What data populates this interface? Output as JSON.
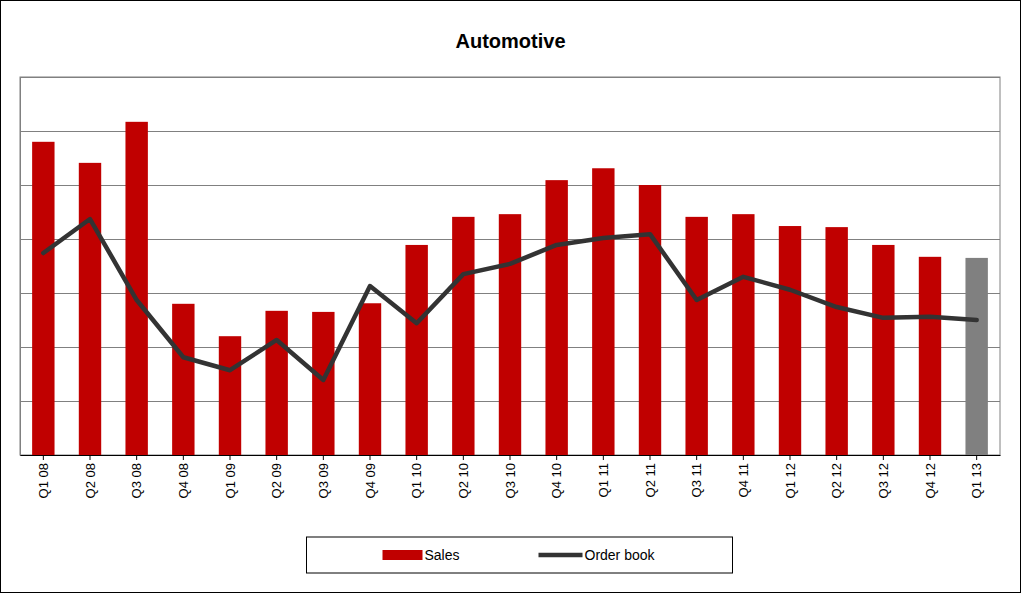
{
  "chart_data": {
    "type": "bar",
    "title": "Automotive",
    "categories": [
      "Q1 08",
      "Q2 08",
      "Q3 08",
      "Q4 08",
      "Q1 09",
      "Q2 09",
      "Q3 09",
      "Q4 09",
      "Q1 10",
      "Q2 10",
      "Q3 10",
      "Q4 10",
      "Q1 11",
      "Q2 11",
      "Q3 11",
      "Q4 11",
      "Q1 12",
      "Q2 12",
      "Q3 12",
      "Q4 12",
      "Q1 13"
    ],
    "series": [
      {
        "name": "Sales",
        "type": "bar",
        "color": "#c00000",
        "colors": [
          "#c00000",
          "#c00000",
          "#c00000",
          "#c00000",
          "#c00000",
          "#c00000",
          "#c00000",
          "#c00000",
          "#c00000",
          "#c00000",
          "#c00000",
          "#c00000",
          "#c00000",
          "#c00000",
          "#c00000",
          "#c00000",
          "#c00000",
          "#c00000",
          "#c00000",
          "#c00000",
          "#808080"
        ],
        "values": [
          5.8,
          5.41,
          6.17,
          2.8,
          2.2,
          2.67,
          2.65,
          2.81,
          3.89,
          4.41,
          4.46,
          5.09,
          5.31,
          5.0,
          4.41,
          4.46,
          4.24,
          4.22,
          3.89,
          3.67,
          3.65
        ]
      },
      {
        "name": "Order book",
        "type": "line",
        "color": "#333333",
        "values": [
          3.74,
          4.37,
          2.87,
          1.81,
          1.57,
          2.13,
          1.39,
          3.13,
          2.44,
          3.35,
          3.54,
          3.89,
          4.02,
          4.09,
          2.87,
          3.3,
          3.06,
          2.74,
          2.54,
          2.56,
          2.5
        ]
      }
    ],
    "ylim": [
      0,
      7
    ],
    "yticks": [
      0,
      1,
      2,
      3,
      4,
      5,
      6,
      7
    ],
    "grid": true,
    "legend": "bottom",
    "tick_labels": "x"
  }
}
